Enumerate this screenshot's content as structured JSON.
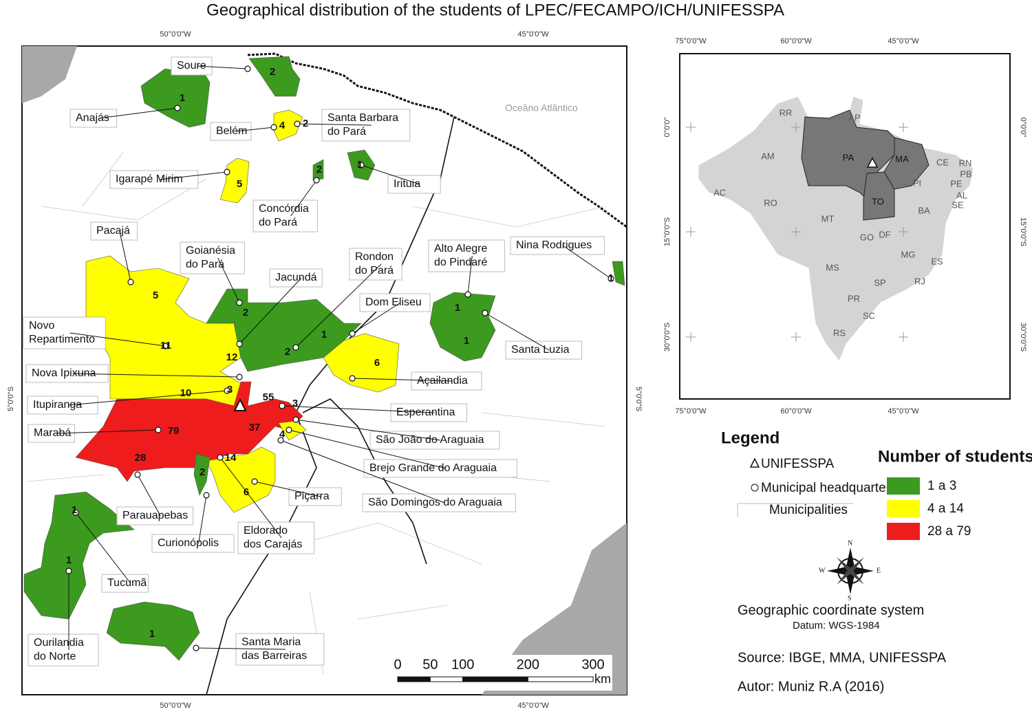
{
  "title": "Geographical distribution of the students of LPEC/FECAMPO/ICH/UNIFESSPA",
  "main_map": {
    "coord_labels": {
      "top": [
        "50°0'0\"W",
        "45°0'0\"W"
      ],
      "bottom": [
        "50°0'0\"W",
        "45°0'0\"W"
      ],
      "left": [
        "5°0'0\"S"
      ],
      "right": [
        "5°0'0\"S"
      ]
    },
    "ocean_label": "Oceâno Atlântico",
    "callouts": [
      {
        "lines": [
          "Soure"
        ]
      },
      {
        "lines": [
          "Anajás"
        ]
      },
      {
        "lines": [
          "Belém"
        ]
      },
      {
        "lines": [
          "Santa Barbara",
          "do Pará"
        ]
      },
      {
        "lines": [
          "Igarapé Mirim"
        ]
      },
      {
        "lines": [
          "Irituia"
        ]
      },
      {
        "lines": [
          "Concórdia",
          "do Pará"
        ]
      },
      {
        "lines": [
          "Pacajá"
        ]
      },
      {
        "lines": [
          "Goianésia",
          "do Pará"
        ]
      },
      {
        "lines": [
          "Jacundá"
        ]
      },
      {
        "lines": [
          "Rondon",
          "do Pará"
        ]
      },
      {
        "lines": [
          "Alto Alegre",
          "do Pindaré"
        ]
      },
      {
        "lines": [
          "Nina Rodrigues"
        ]
      },
      {
        "lines": [
          "Dom Eliseu"
        ]
      },
      {
        "lines": [
          "Novo",
          "Repartimento"
        ]
      },
      {
        "lines": [
          "Santa Luzia"
        ]
      },
      {
        "lines": [
          "Nova Ipixuna"
        ]
      },
      {
        "lines": [
          "Açailandia"
        ]
      },
      {
        "lines": [
          "Itupiranga"
        ]
      },
      {
        "lines": [
          "Esperantina"
        ]
      },
      {
        "lines": [
          "Marabá"
        ]
      },
      {
        "lines": [
          "São João do Araguaia"
        ]
      },
      {
        "lines": [
          "Brejo Grande do Araguaia"
        ]
      },
      {
        "lines": [
          "São Domingos do Araguaia"
        ]
      },
      {
        "lines": [
          "Piçarra"
        ]
      },
      {
        "lines": [
          "Parauapebas"
        ]
      },
      {
        "lines": [
          "Curionópolis"
        ]
      },
      {
        "lines": [
          "Eldorado",
          "dos Carajás"
        ]
      },
      {
        "lines": [
          "Tucumã"
        ]
      },
      {
        "lines": [
          "Ourilandia",
          "do Norte"
        ]
      },
      {
        "lines": [
          "Santa Maria",
          "das Barreiras"
        ]
      }
    ],
    "counts": [
      1,
      2,
      4,
      2,
      5,
      2,
      1,
      5,
      2,
      11,
      12,
      2,
      1,
      1,
      1,
      6,
      3,
      10,
      55,
      3,
      79,
      37,
      4,
      28,
      14,
      2,
      6,
      1,
      1,
      1,
      1
    ],
    "scale_bar": {
      "ticks": [
        0,
        50,
        100,
        200,
        300
      ],
      "unit": "km"
    }
  },
  "inset_map": {
    "coord_labels": {
      "top": [
        "75°0'0\"W",
        "60°0'0\"W",
        "45°0'0\"W"
      ],
      "bottom": [
        "75°0'0\"W",
        "60°0'0\"W",
        "45°0'0\"W"
      ],
      "left": [
        "0°0'0\"",
        "15°0'0\"S",
        "30°0'0\"S"
      ],
      "right": [
        "0°0'0\"",
        "15°0'0\"S",
        "30°0'0\"S"
      ]
    },
    "states": [
      "RR",
      "AP",
      "AM",
      "PA",
      "MA",
      "CE",
      "RN",
      "PB",
      "PE",
      "AL",
      "SE",
      "PI",
      "AC",
      "RO",
      "TO",
      "MT",
      "BA",
      "GO",
      "DF",
      "MG",
      "ES",
      "MS",
      "SP",
      "RJ",
      "PR",
      "SC",
      "RS"
    ]
  },
  "legend": {
    "title": "Legend",
    "items": [
      "UNIFESSPA",
      "Municipal headquarters",
      "Municipalities"
    ],
    "classes_title": "Number of students",
    "classes": [
      {
        "label": "1 a 3",
        "color": "#3c9a1f"
      },
      {
        "label": "4 a 14",
        "color": "#ffff00"
      },
      {
        "label": "28 a 79",
        "color": "#ee1c1c"
      }
    ]
  },
  "compass": [
    "N",
    "E",
    "S",
    "W"
  ],
  "credits": {
    "system": "Geographic coordinate system",
    "datum": "Datum: WGS-1984",
    "source": "Source: IBGE, MMA, UNIFESSPA",
    "author": "Autor: Muniz R.A (2016)"
  }
}
